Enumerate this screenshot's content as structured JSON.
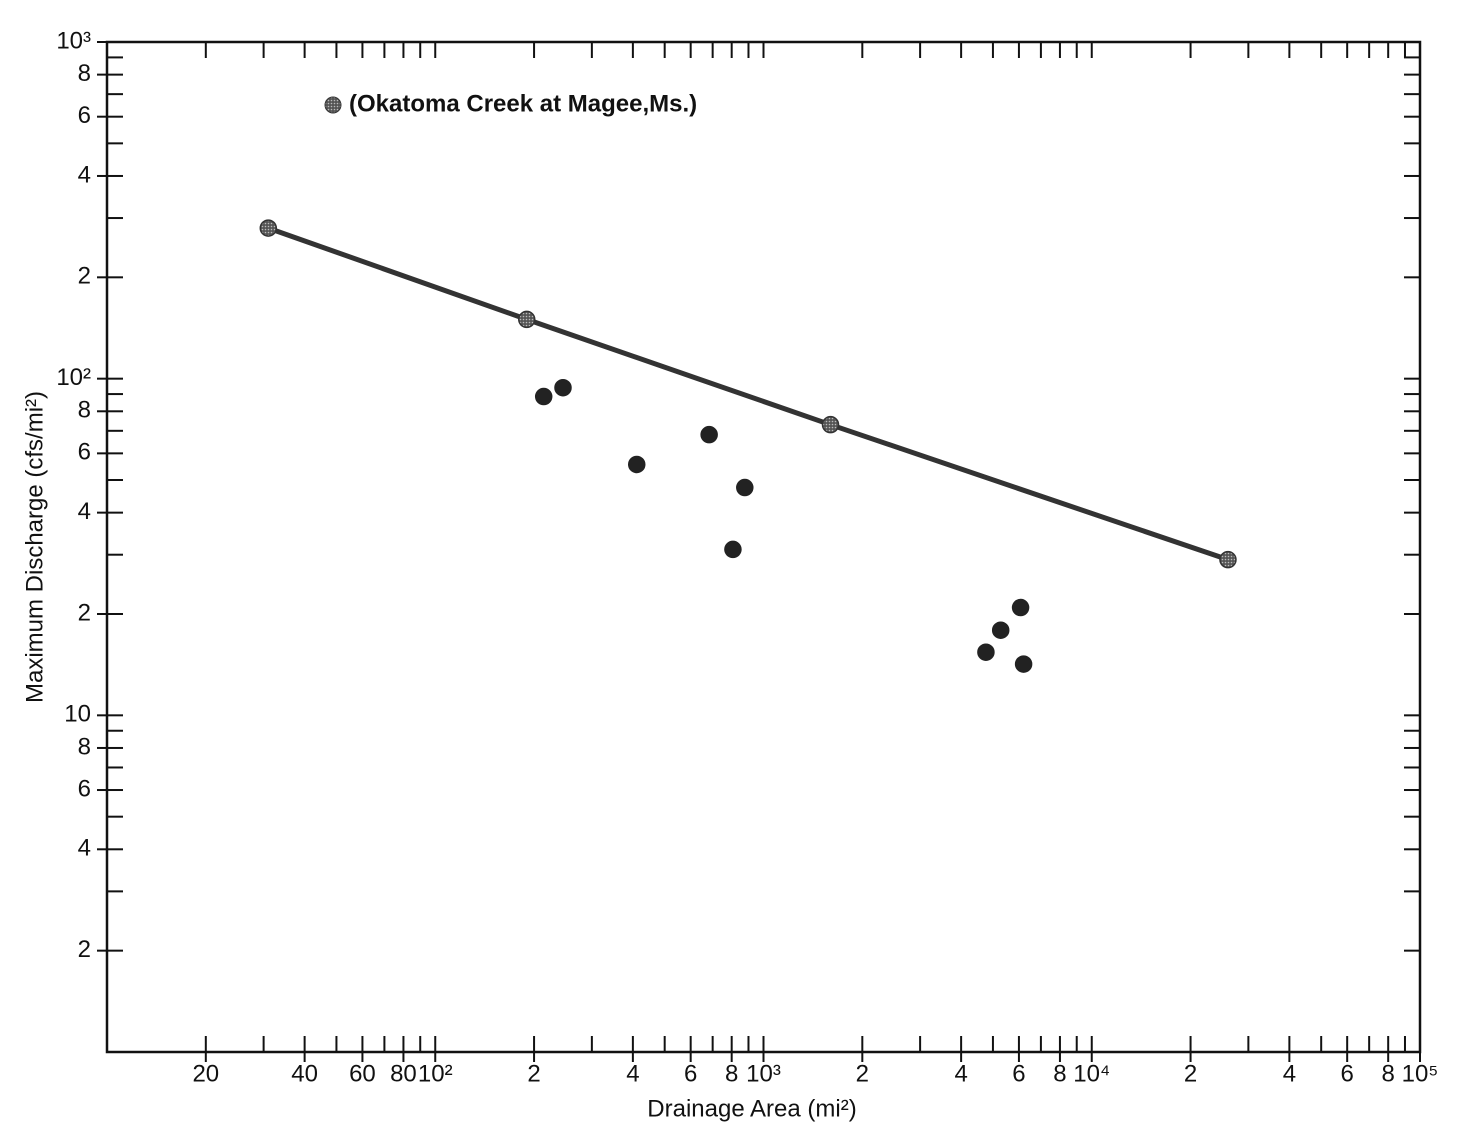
{
  "chart_data": {
    "type": "scatter",
    "x_label": "Drainage Area (mi²)",
    "y_label": "Maximum Discharge (cfs/mi²)",
    "xscale": "log",
    "yscale": "log",
    "xlim": [
      10,
      100000
    ],
    "ylim": [
      1,
      1000
    ],
    "xticks": [
      20,
      40,
      60,
      80,
      {
        "value": 100,
        "label": "10²"
      },
      {
        "value": 200,
        "label": "2"
      },
      {
        "value": 400,
        "label": "4"
      },
      {
        "value": 600,
        "label": "6"
      },
      {
        "value": 800,
        "label": "8"
      },
      {
        "value": 1000,
        "label": "10³"
      },
      {
        "value": 2000,
        "label": "2"
      },
      {
        "value": 4000,
        "label": "4"
      },
      {
        "value": 6000,
        "label": "6"
      },
      {
        "value": 8000,
        "label": "8"
      },
      {
        "value": 10000,
        "label": "10⁴"
      },
      {
        "value": 20000,
        "label": "2"
      },
      {
        "value": 40000,
        "label": "4"
      },
      {
        "value": 60000,
        "label": "6"
      },
      {
        "value": 80000,
        "label": "8"
      },
      {
        "value": 100000,
        "label": "10⁵"
      }
    ],
    "yticks": [
      2,
      4,
      6,
      8,
      10,
      {
        "value": 20,
        "label": "2"
      },
      {
        "value": 40,
        "label": "4"
      },
      {
        "value": 60,
        "label": "6"
      },
      {
        "value": 80,
        "label": "8"
      },
      {
        "value": 100,
        "label": "10²"
      },
      {
        "value": 200,
        "label": "2"
      },
      {
        "value": 400,
        "label": "4"
      },
      {
        "value": 600,
        "label": "6"
      },
      {
        "value": 800,
        "label": "8"
      },
      {
        "value": 1000,
        "label": "10³"
      }
    ],
    "series": [
      {
        "name": "(Okatoma Creek at Magee,Ms.)",
        "color": "#333333",
        "line": true,
        "hatched": true,
        "x": [
          31,
          190,
          1600,
          26000
        ],
        "values": [
          280,
          150,
          73,
          29
        ]
      },
      {
        "color": "#222222",
        "line": false,
        "hatched": false,
        "x": [
          214,
          245,
          411,
          683,
          877,
          807,
          4760,
          5280,
          6070,
          6200
        ],
        "values": [
          88.5,
          94,
          55.6,
          68.2,
          47.5,
          31.1,
          15.4,
          17.9,
          20.9,
          14.2
        ]
      }
    ]
  }
}
